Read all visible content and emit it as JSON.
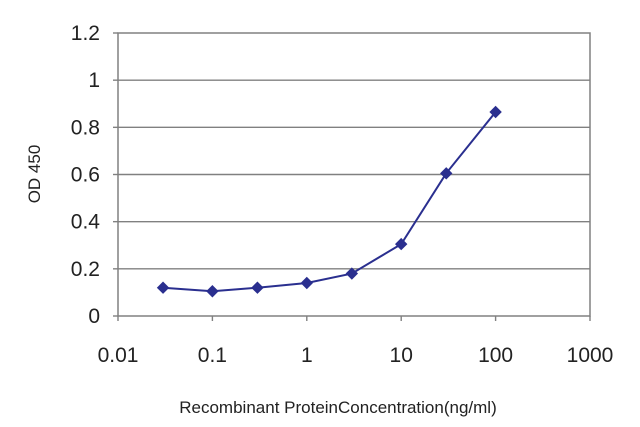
{
  "chart_data": {
    "type": "line",
    "title": "",
    "xlabel": "Recombinant ProteinConcentration(ng/ml)",
    "ylabel": "OD 450",
    "xscale": "log",
    "xlim": [
      0.01,
      1000
    ],
    "ylim": [
      0,
      1.2
    ],
    "xticks": [
      {
        "value": 0.01,
        "label": "0.01"
      },
      {
        "value": 0.1,
        "label": "0.1"
      },
      {
        "value": 1,
        "label": "1"
      },
      {
        "value": 10,
        "label": "10"
      },
      {
        "value": 100,
        "label": "100"
      },
      {
        "value": 1000,
        "label": "1000"
      }
    ],
    "yticks": [
      {
        "value": 0,
        "label": "0"
      },
      {
        "value": 0.2,
        "label": "0.2"
      },
      {
        "value": 0.4,
        "label": "0.4"
      },
      {
        "value": 0.6,
        "label": "0.6"
      },
      {
        "value": 0.8,
        "label": "0.8"
      },
      {
        "value": 1,
        "label": "1"
      },
      {
        "value": 1.2,
        "label": "1.2"
      }
    ],
    "grid": "horizontal",
    "legend": "none",
    "series": [
      {
        "color": "#2a2f8f",
        "marker": "diamond",
        "points": [
          {
            "x": 0.03,
            "y": 0.12
          },
          {
            "x": 0.1,
            "y": 0.105
          },
          {
            "x": 0.3,
            "y": 0.12
          },
          {
            "x": 1,
            "y": 0.14
          },
          {
            "x": 3,
            "y": 0.18
          },
          {
            "x": 10,
            "y": 0.305
          },
          {
            "x": 30,
            "y": 0.605
          },
          {
            "x": 100,
            "y": 0.865
          }
        ]
      }
    ],
    "colors": {
      "grid": "#808080",
      "frame": "#808080",
      "text": "#222222"
    }
  }
}
